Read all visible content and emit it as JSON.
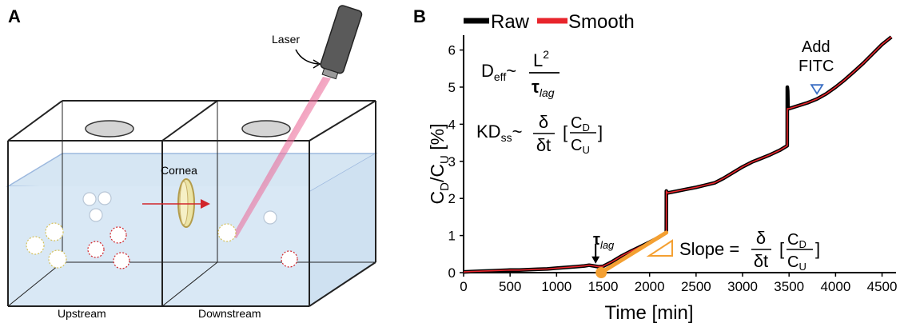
{
  "panel_a": {
    "label": "A",
    "laser_label": "Laser",
    "cornea_label": "Cornea",
    "upstream_label": "Upstream",
    "downstream_label": "Downstream"
  },
  "panel_b": {
    "label": "B",
    "legend": {
      "raw": "Raw",
      "smooth": "Smooth"
    },
    "eq_deff": {
      "lhs": "D",
      "lhs_sub": "eff",
      "tilde": "~",
      "num": "L",
      "num_sup": "2",
      "den": "τ",
      "den_sub": "lag"
    },
    "eq_kd": {
      "lhs": "KD",
      "lhs_sub": "ss",
      "tilde": "~",
      "d_num": "δ",
      "d_den": "δt",
      "br_open": "[",
      "c_num": "C",
      "c_num_sub": "D",
      "c_den": "C",
      "c_den_sub": "U",
      "br_close": "]"
    },
    "eq_slope": {
      "lhs": "Slope =",
      "d_num": "δ",
      "d_den": "δt",
      "br_open": "[",
      "c_num": "C",
      "c_num_sub": "D",
      "c_den": "C",
      "c_den_sub": "U",
      "br_close": "]"
    },
    "tau_label": {
      "main": "τ",
      "sub": "lag"
    },
    "add_fitc": {
      "line1": "Add",
      "line2": "FITC"
    },
    "ylabel": {
      "c1": "C",
      "s1": "D",
      "slash": "/C",
      "s2": "U",
      "unit": " [%]"
    }
  },
  "chart_data": {
    "type": "line",
    "title": "",
    "xlabel": "Time [min]",
    "ylabel": "CD/CU [%]",
    "xlim": [
      0,
      4650
    ],
    "ylim": [
      0,
      6.4
    ],
    "xticks": [
      0,
      500,
      1000,
      1500,
      2000,
      2500,
      3000,
      3500,
      4000,
      4500
    ],
    "yticks": [
      0,
      1,
      2,
      3,
      4,
      5,
      6
    ],
    "legend": "top-left",
    "colors": {
      "raw": "#000000",
      "smooth": "#e8252c",
      "slope": "#f4a032",
      "fitc_marker": "#3b6fc4"
    },
    "series": [
      {
        "name": "Raw",
        "x": [
          0,
          100,
          200,
          300,
          400,
          500,
          600,
          700,
          800,
          900,
          1000,
          1100,
          1200,
          1300,
          1350,
          1400,
          1450,
          1500,
          1600,
          1700,
          1800,
          1900,
          2000,
          2100,
          2180,
          2181,
          2190,
          2200,
          2300,
          2400,
          2500,
          2600,
          2700,
          2800,
          2900,
          3000,
          3100,
          3200,
          3300,
          3400,
          3480,
          3481,
          3485,
          3490,
          3495,
          3500,
          3600,
          3700,
          3800,
          3900,
          4000,
          4100,
          4200,
          4300,
          4400,
          4500,
          4600
        ],
        "y": [
          0.02,
          0.03,
          0.04,
          0.05,
          0.06,
          0.07,
          0.07,
          0.08,
          0.09,
          0.1,
          0.12,
          0.14,
          0.16,
          0.18,
          0.2,
          0.18,
          0.16,
          0.17,
          0.3,
          0.45,
          0.58,
          0.7,
          0.82,
          0.95,
          1.08,
          2.2,
          2.15,
          2.15,
          2.2,
          2.25,
          2.3,
          2.36,
          2.42,
          2.55,
          2.7,
          2.85,
          2.98,
          3.08,
          3.18,
          3.3,
          3.42,
          5.0,
          4.9,
          4.45,
          4.42,
          4.42,
          4.5,
          4.58,
          4.68,
          4.82,
          5.0,
          5.2,
          5.42,
          5.65,
          5.9,
          6.15,
          6.35
        ]
      },
      {
        "name": "Smooth",
        "x": [
          0,
          100,
          200,
          300,
          400,
          500,
          600,
          700,
          800,
          900,
          1000,
          1100,
          1200,
          1300,
          1350,
          1400,
          1450,
          1500,
          1600,
          1700,
          1800,
          1900,
          2000,
          2100,
          2180,
          2181,
          2190,
          2200,
          2300,
          2400,
          2500,
          2600,
          2700,
          2800,
          2900,
          3000,
          3100,
          3200,
          3300,
          3400,
          3480,
          3481,
          3500,
          3600,
          3700,
          3800,
          3900,
          4000,
          4100,
          4200,
          4300,
          4400,
          4500,
          4600
        ],
        "y": [
          0.02,
          0.03,
          0.04,
          0.05,
          0.06,
          0.07,
          0.07,
          0.08,
          0.09,
          0.1,
          0.12,
          0.14,
          0.16,
          0.18,
          0.2,
          0.18,
          0.16,
          0.17,
          0.3,
          0.45,
          0.58,
          0.7,
          0.82,
          0.95,
          1.08,
          2.2,
          2.15,
          2.15,
          2.2,
          2.25,
          2.3,
          2.36,
          2.42,
          2.55,
          2.7,
          2.85,
          2.98,
          3.08,
          3.18,
          3.3,
          3.42,
          4.42,
          4.42,
          4.5,
          4.58,
          4.68,
          4.82,
          5.0,
          5.2,
          5.42,
          5.65,
          5.9,
          6.15,
          6.35
        ]
      }
    ],
    "annotations": [
      {
        "type": "slope-line",
        "x": [
          1480,
          2180
        ],
        "y": [
          0.0,
          1.08
        ]
      },
      {
        "type": "lag-point",
        "x": 1480,
        "y": 0.0
      },
      {
        "type": "arrow-down",
        "x": 1420,
        "y": 0.22,
        "label": "τlag"
      },
      {
        "type": "triangle-down",
        "x": 3800,
        "y": 4.78,
        "label": "Add FITC"
      }
    ]
  }
}
